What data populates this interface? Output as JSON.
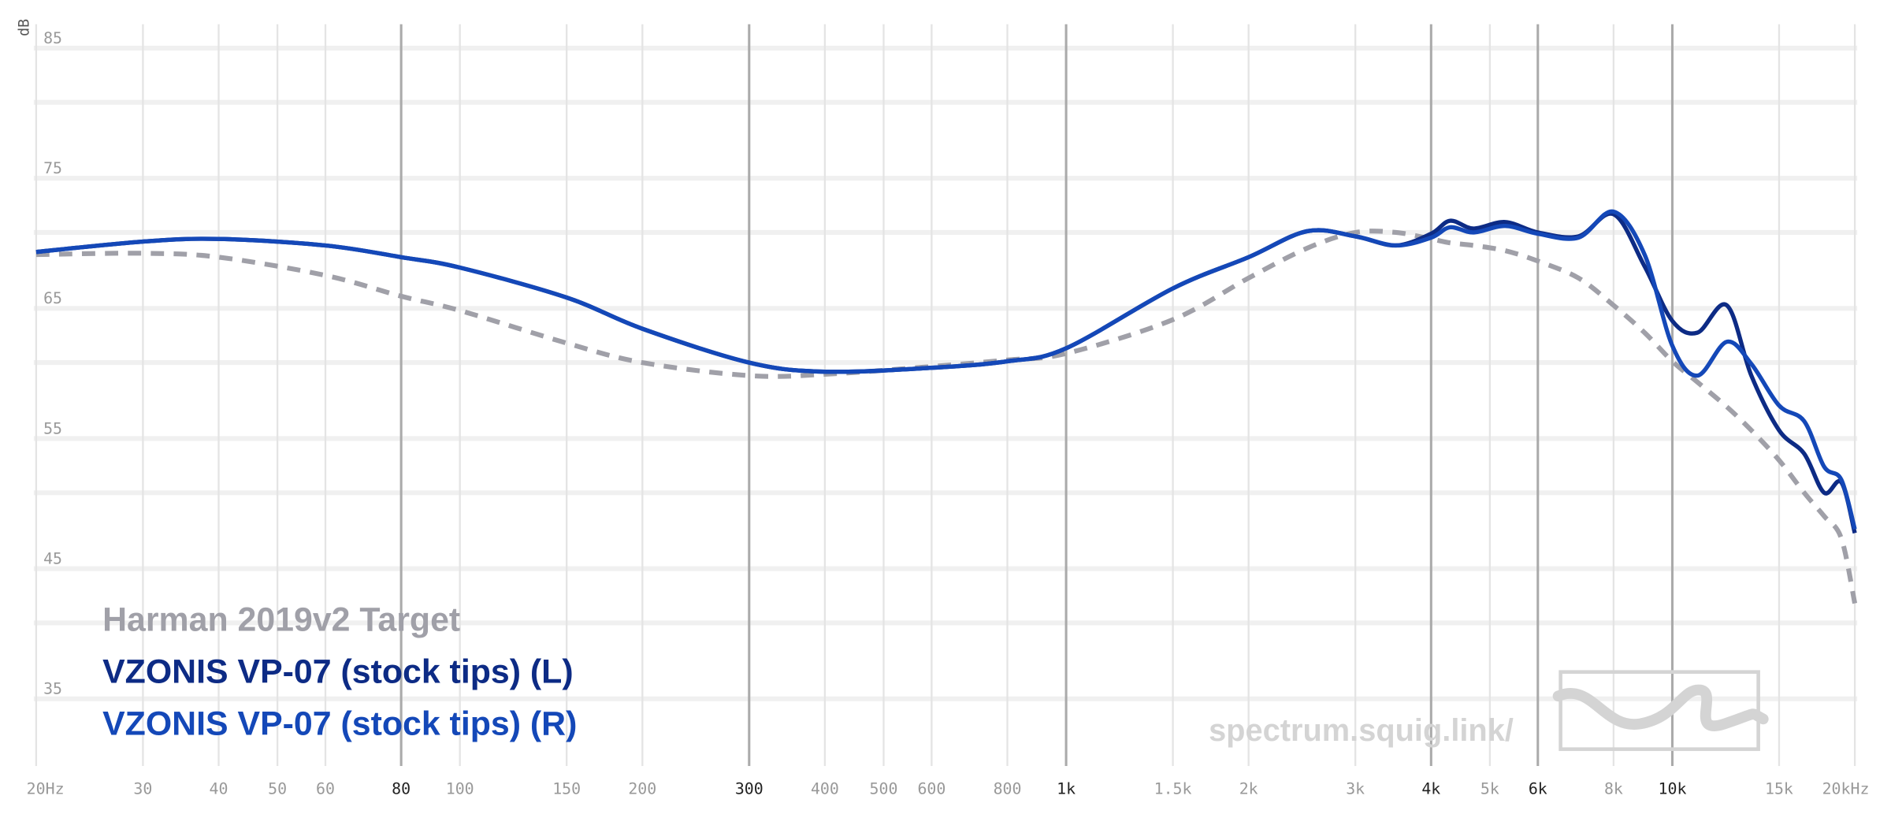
{
  "chart_data": {
    "type": "line",
    "scale_x": "log",
    "y_label": "dB",
    "watermark": "spectrum.squig.link/",
    "x": [
      20,
      30,
      40,
      60,
      80,
      100,
      150,
      200,
      300,
      400,
      600,
      800,
      1000,
      1500,
      2000,
      2500,
      3000,
      3500,
      4000,
      4300,
      4700,
      5300,
      6000,
      7000,
      8000,
      9000,
      10000,
      11000,
      12300,
      13500,
      15000,
      16500,
      17800,
      19000,
      20000
    ],
    "series": [
      {
        "name": "Harman 2019v2 Target",
        "color": "#a0a0a8",
        "dashed": true,
        "values": [
          68.3,
          68.4,
          68.1,
          66.7,
          65.1,
          64.0,
          61.5,
          60.0,
          59.0,
          59.1,
          59.7,
          60.2,
          60.7,
          63.3,
          66.5,
          68.8,
          70.0,
          70.0,
          69.5,
          69.2,
          69.0,
          68.6,
          67.8,
          66.5,
          64.4,
          62.3,
          60.1,
          58.5,
          56.6,
          54.8,
          52.5,
          50.0,
          48.2,
          46.5,
          41.5
        ]
      },
      {
        "name": "VZONIS VP-07 (stock tips) (L)",
        "color": "#0d2b85",
        "dashed": false,
        "values": [
          68.5,
          69.3,
          69.5,
          69.0,
          68.1,
          67.3,
          65.0,
          62.6,
          60.0,
          59.3,
          59.6,
          60.1,
          61.1,
          65.7,
          68.1,
          70.1,
          69.7,
          69.0,
          69.9,
          70.9,
          70.3,
          70.8,
          70.0,
          69.7,
          71.4,
          67.4,
          63.2,
          62.3,
          64.4,
          59.0,
          54.8,
          53.0,
          50.0,
          50.8,
          46.9
        ]
      },
      {
        "name": "VZONIS VP-07 (stock tips) (R)",
        "color": "#1448b8",
        "dashed": false,
        "values": [
          68.5,
          69.3,
          69.5,
          69.0,
          68.1,
          67.3,
          65.0,
          62.6,
          60.0,
          59.3,
          59.6,
          60.1,
          61.1,
          65.7,
          68.1,
          70.1,
          69.7,
          69.0,
          69.6,
          70.4,
          70.0,
          70.5,
          69.9,
          69.6,
          71.6,
          68.3,
          61.3,
          59.0,
          61.6,
          59.9,
          56.7,
          55.5,
          52.0,
          51.0,
          47.2
        ]
      }
    ],
    "xlim": [
      20,
      20000
    ],
    "ylim": [
      29,
      86
    ],
    "xticks": [
      {
        "value": 20,
        "label": "20Hz"
      },
      30,
      40,
      50,
      60,
      80,
      100,
      150,
      200,
      300,
      400,
      500,
      600,
      800,
      {
        "value": 1000,
        "label": "1k"
      },
      {
        "value": 1500,
        "label": "1.5k"
      },
      {
        "value": 2000,
        "label": "2k"
      },
      {
        "value": 3000,
        "label": "3k"
      },
      {
        "value": 4000,
        "label": "4k"
      },
      {
        "value": 5000,
        "label": "5k"
      },
      {
        "value": 6000,
        "label": "6k"
      },
      {
        "value": 8000,
        "label": "8k"
      },
      {
        "value": 10000,
        "label": "10k"
      },
      {
        "value": 15000,
        "label": "15k"
      },
      {
        "value": 20000,
        "label": "20kHz"
      }
    ],
    "xticks_major": [
      80,
      300,
      1000,
      4000,
      6000,
      10000
    ],
    "yticks": [
      35,
      45,
      55,
      65,
      75,
      85
    ],
    "yminor": [
      40,
      50,
      60,
      70,
      80
    ],
    "grid": true
  }
}
